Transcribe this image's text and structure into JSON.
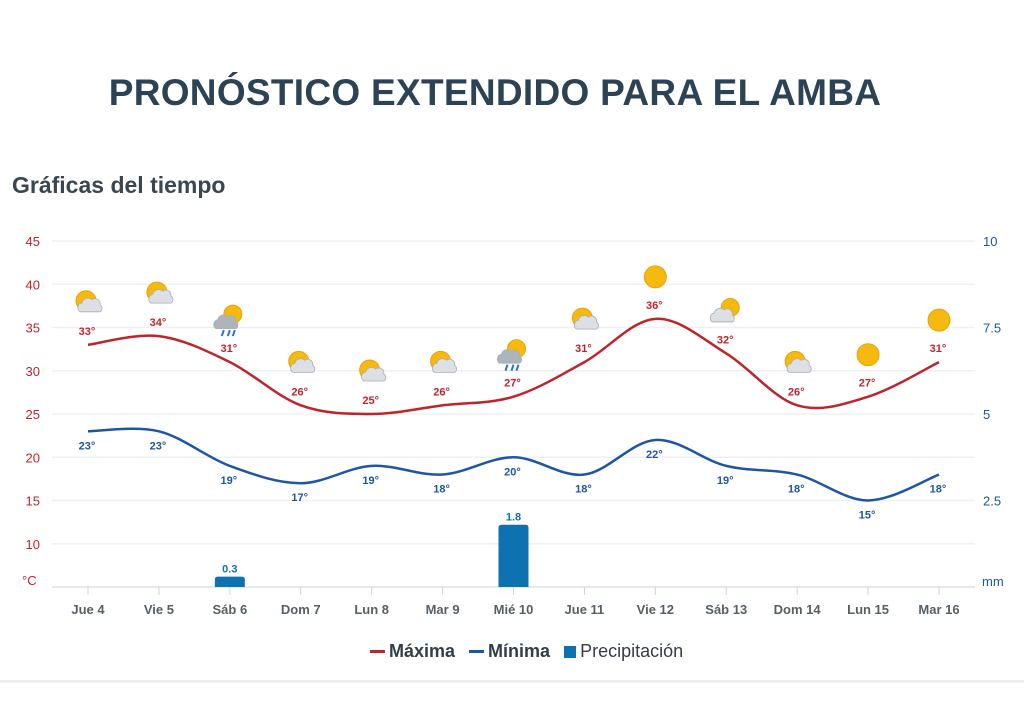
{
  "title": "PRONÓSTICO EXTENDIDO PARA EL AMBA",
  "subtitle": "Gráficas del tiempo",
  "colors": {
    "max": "#c0242b",
    "min": "#1f55a5",
    "precip": "#0e71b0",
    "left_axis": "#c0242b",
    "right_axis": "#1f55a5"
  },
  "chart_data": {
    "type": "line",
    "categories": [
      "Jue 4",
      "Vie 5",
      "Sáb 6",
      "Dom 7",
      "Lun 8",
      "Mar 9",
      "Mié 10",
      "Jue 11",
      "Vie 12",
      "Sáb 13",
      "Dom 14",
      "Lun 15",
      "Mar 16"
    ],
    "icons": [
      "partly-cloudy-icon",
      "partly-cloudy-icon",
      "rain-sun-icon",
      "partly-cloudy-icon",
      "partly-cloudy-icon",
      "partly-cloudy-icon",
      "rain-sun-icon",
      "partly-cloudy-icon",
      "sunny-icon",
      "mostly-cloudy-icon",
      "partly-cloudy-icon",
      "sunny-icon",
      "sunny-icon"
    ],
    "series": [
      {
        "name": "Máxima",
        "type": "line",
        "axis": "left",
        "values": [
          33,
          34,
          31,
          26,
          25,
          26,
          27,
          31,
          36,
          32,
          26,
          27,
          31
        ],
        "labels": [
          "33°",
          "34°",
          "31°",
          "26°",
          "25°",
          "26°",
          "27°",
          "31°",
          "36°",
          "32°",
          "26°",
          "27°",
          "31°"
        ]
      },
      {
        "name": "Mínima",
        "type": "line",
        "axis": "left",
        "values": [
          23,
          23,
          19,
          17,
          19,
          18,
          20,
          18,
          22,
          19,
          18,
          15,
          18
        ],
        "labels": [
          "23°",
          "23°",
          "19°",
          "17°",
          "19°",
          "18°",
          "20°",
          "18°",
          "22°",
          "19°",
          "18°",
          "15°",
          "18°"
        ]
      },
      {
        "name": "Precipitación",
        "type": "bar",
        "axis": "right",
        "values": [
          0,
          0,
          0.3,
          0,
          0,
          0,
          1.8,
          0,
          0,
          0,
          0,
          0,
          0
        ],
        "labels": [
          "",
          "",
          "0.3",
          "",
          "",
          "",
          "1.8",
          "",
          "",
          "",
          "",
          "",
          ""
        ]
      }
    ],
    "left_axis": {
      "unit": "°C",
      "ticks": [
        "45",
        "40",
        "35",
        "30",
        "25",
        "20",
        "15",
        "10"
      ],
      "range": [
        5,
        45
      ]
    },
    "right_axis": {
      "unit": "mm",
      "ticks": [
        "10",
        "7.5",
        "5",
        "2.5"
      ],
      "range": [
        0,
        10
      ]
    },
    "grid": true,
    "legend_position": "bottom"
  }
}
